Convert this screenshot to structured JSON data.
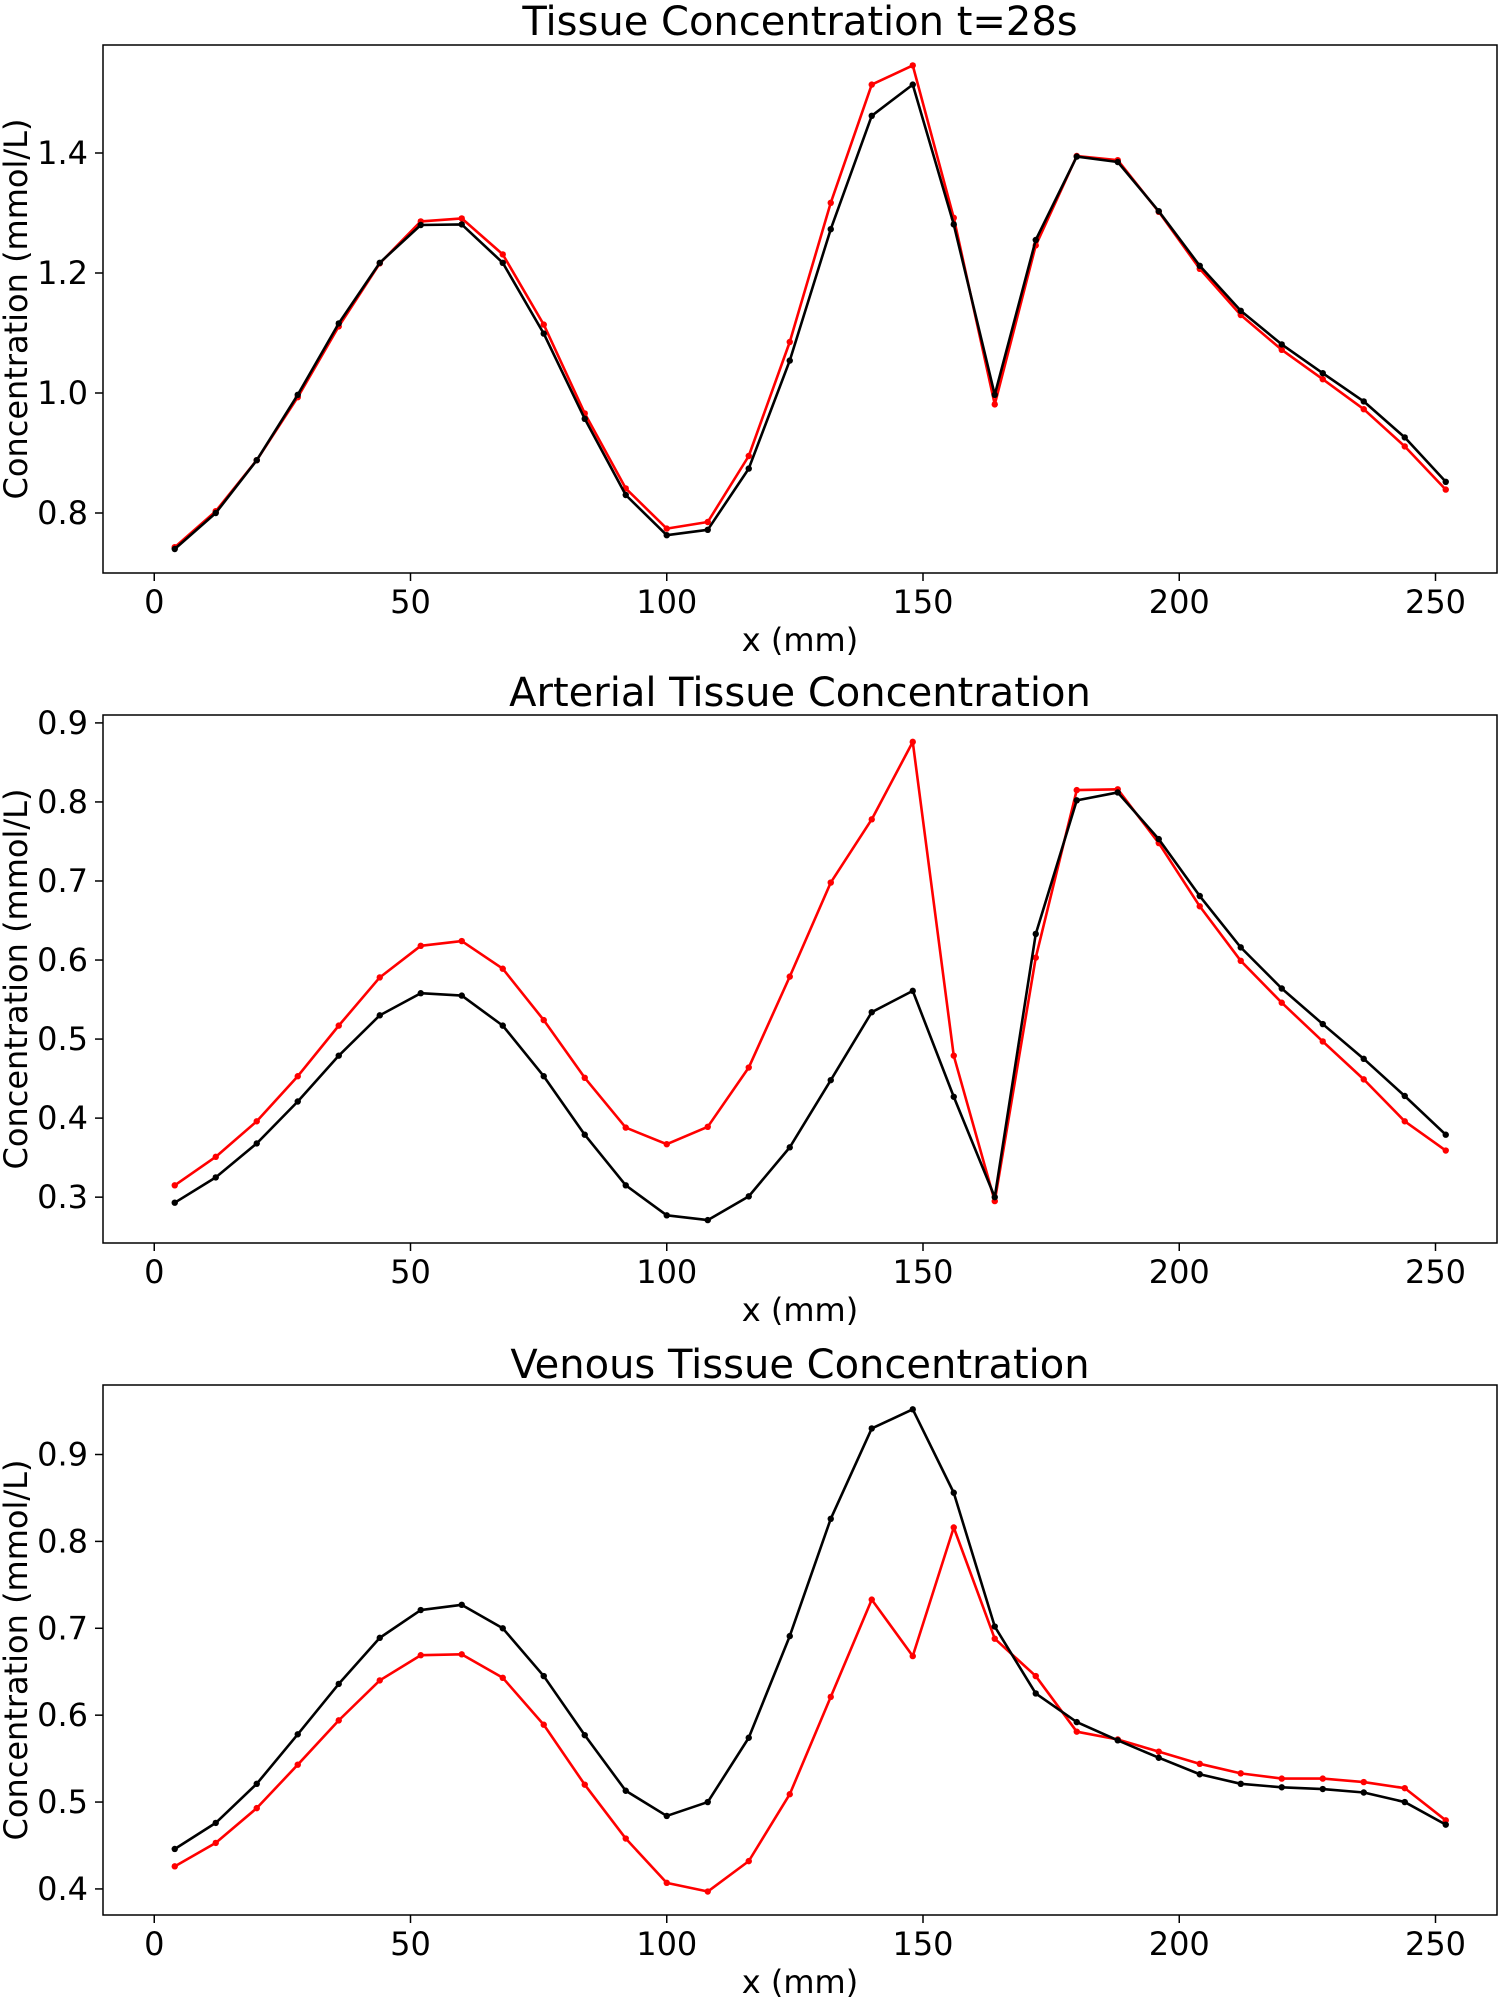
{
  "chart_data": [
    {
      "type": "line",
      "title": "Tissue Concentration t=28s",
      "xlabel": "x (mm)",
      "ylabel": "Concentration (mmol/L)",
      "xlim": [
        -10,
        262
      ],
      "ylim": [
        0.7,
        1.58
      ],
      "xticks": [
        0,
        50,
        100,
        150,
        200,
        250
      ],
      "yticks": [
        0.8,
        1.0,
        1.2,
        1.4
      ],
      "ytick_labels": [
        "0.8",
        "1.0",
        "1.2",
        "1.4"
      ],
      "x": [
        4,
        12,
        20,
        28,
        36,
        44,
        52,
        60,
        68,
        76,
        84,
        92,
        100,
        108,
        116,
        124,
        132,
        140,
        148,
        156,
        164,
        172,
        180,
        188,
        196,
        204,
        212,
        220,
        228,
        236,
        244,
        252
      ],
      "series": [
        {
          "color": "#ff0000",
          "values": [
            0.743,
            0.803,
            0.888,
            0.993,
            1.111,
            1.216,
            1.286,
            1.291,
            1.231,
            1.114,
            0.966,
            0.841,
            0.774,
            0.785,
            0.895,
            1.085,
            1.317,
            1.514,
            1.546,
            1.292,
            0.981,
            1.246,
            1.395,
            1.388,
            1.302,
            1.207,
            1.13,
            1.072,
            1.023,
            0.973,
            0.911,
            0.839
          ]
        },
        {
          "color": "#000000",
          "values": [
            0.74,
            0.8,
            0.888,
            0.997,
            1.116,
            1.217,
            1.28,
            1.281,
            1.217,
            1.099,
            0.957,
            0.83,
            0.763,
            0.772,
            0.874,
            1.054,
            1.273,
            1.462,
            1.514,
            1.281,
            0.997,
            1.255,
            1.394,
            1.385,
            1.303,
            1.212,
            1.137,
            1.081,
            1.033,
            0.986,
            0.926,
            0.852
          ]
        }
      ]
    },
    {
      "type": "line",
      "title": "Arterial Tissue Concentration",
      "xlabel": "x (mm)",
      "ylabel": "Concentration (mmol/L)",
      "xlim": [
        -10,
        262
      ],
      "ylim": [
        0.242,
        0.91
      ],
      "xticks": [
        0,
        50,
        100,
        150,
        200,
        250
      ],
      "yticks": [
        0.3,
        0.4,
        0.5,
        0.6,
        0.7,
        0.8,
        0.9
      ],
      "ytick_labels": [
        "0.3",
        "0.4",
        "0.5",
        "0.6",
        "0.7",
        "0.8",
        "0.9"
      ],
      "x": [
        4,
        12,
        20,
        28,
        36,
        44,
        52,
        60,
        68,
        76,
        84,
        92,
        100,
        108,
        116,
        124,
        132,
        140,
        148,
        156,
        164,
        172,
        180,
        188,
        196,
        204,
        212,
        220,
        228,
        236,
        244,
        252
      ],
      "series": [
        {
          "color": "#ff0000",
          "values": [
            0.315,
            0.351,
            0.396,
            0.453,
            0.517,
            0.578,
            0.618,
            0.624,
            0.589,
            0.524,
            0.451,
            0.388,
            0.367,
            0.389,
            0.464,
            0.579,
            0.698,
            0.778,
            0.876,
            0.479,
            0.295,
            0.603,
            0.815,
            0.816,
            0.748,
            0.668,
            0.599,
            0.546,
            0.497,
            0.449,
            0.396,
            0.359
          ]
        },
        {
          "color": "#000000",
          "values": [
            0.293,
            0.325,
            0.368,
            0.421,
            0.479,
            0.53,
            0.558,
            0.555,
            0.517,
            0.453,
            0.379,
            0.315,
            0.277,
            0.271,
            0.301,
            0.363,
            0.448,
            0.534,
            0.561,
            0.427,
            0.3,
            0.633,
            0.802,
            0.812,
            0.753,
            0.681,
            0.616,
            0.564,
            0.519,
            0.475,
            0.428,
            0.379
          ]
        }
      ]
    },
    {
      "type": "line",
      "title": "Venous Tissue Concentration",
      "xlabel": "x (mm)",
      "ylabel": "Concentration (mmol/L)",
      "xlim": [
        -10,
        262
      ],
      "ylim": [
        0.37,
        0.98
      ],
      "xticks": [
        0,
        50,
        100,
        150,
        200,
        250
      ],
      "yticks": [
        0.4,
        0.5,
        0.6,
        0.7,
        0.8,
        0.9
      ],
      "ytick_labels": [
        "0.4",
        "0.5",
        "0.6",
        "0.7",
        "0.8",
        "0.9"
      ],
      "x": [
        4,
        12,
        20,
        28,
        36,
        44,
        52,
        60,
        68,
        76,
        84,
        92,
        100,
        108,
        116,
        124,
        132,
        140,
        148,
        156,
        164,
        172,
        180,
        188,
        196,
        204,
        212,
        220,
        228,
        236,
        244,
        252
      ],
      "series": [
        {
          "color": "#ff0000",
          "values": [
            0.426,
            0.453,
            0.493,
            0.543,
            0.594,
            0.64,
            0.669,
            0.67,
            0.643,
            0.589,
            0.52,
            0.458,
            0.407,
            0.397,
            0.432,
            0.509,
            0.621,
            0.733,
            0.668,
            0.816,
            0.688,
            0.645,
            0.581,
            0.572,
            0.558,
            0.544,
            0.533,
            0.527,
            0.527,
            0.523,
            0.516,
            0.479
          ]
        },
        {
          "color": "#000000",
          "values": [
            0.446,
            0.476,
            0.521,
            0.578,
            0.636,
            0.689,
            0.721,
            0.727,
            0.7,
            0.645,
            0.577,
            0.513,
            0.484,
            0.5,
            0.574,
            0.691,
            0.826,
            0.93,
            0.952,
            0.856,
            0.702,
            0.625,
            0.592,
            0.571,
            0.551,
            0.532,
            0.521,
            0.517,
            0.515,
            0.511,
            0.5,
            0.474
          ]
        }
      ]
    }
  ]
}
